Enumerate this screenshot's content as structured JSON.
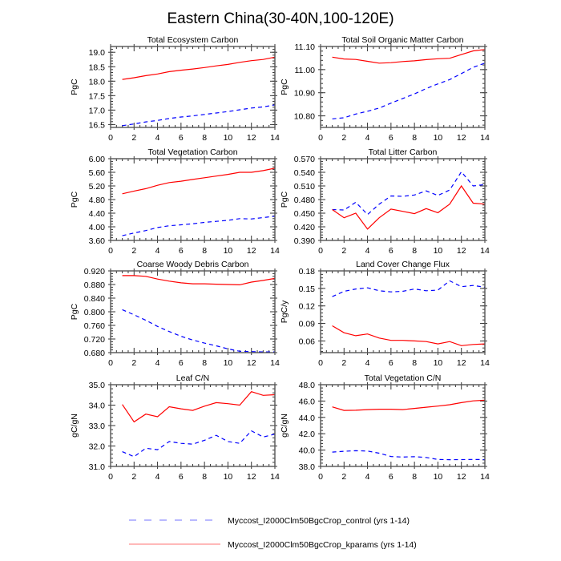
{
  "figure_title": "Eastern China(30-40N,100-120E)",
  "legend": [
    {
      "label": "Myccost_I2000Clm50BgcCrop_control (yrs 1-14)",
      "color": "#0000ff",
      "style": "dashed"
    },
    {
      "label": "Myccost_I2000Clm50BgcCrop_kparams (yrs 1-14)",
      "color": "#ff0000",
      "style": "solid"
    }
  ],
  "chart_data": [
    {
      "type": "line",
      "title": "Total Ecosystem Carbon",
      "xlabel": "",
      "ylabel": "PgC",
      "xlim": [
        0,
        14
      ],
      "ylim": [
        16.4,
        19.2
      ],
      "xticks": [
        0,
        2,
        4,
        6,
        8,
        10,
        12,
        14
      ],
      "yticks": [
        16.5,
        17.0,
        17.5,
        18.0,
        18.5,
        19.0
      ],
      "ytick_labels": [
        "16.5",
        "17.0",
        "17.5",
        "18.0",
        "18.5",
        "19.0"
      ],
      "x": [
        1,
        2,
        3,
        4,
        5,
        6,
        7,
        8,
        9,
        10,
        11,
        12,
        13,
        14
      ],
      "series": [
        {
          "name": "Myccost_I2000Clm50BgcCrop_control (yrs 1-14)",
          "color": "#0000ff",
          "style": "dashed",
          "values": [
            16.46,
            16.52,
            16.59,
            16.64,
            16.71,
            16.76,
            16.8,
            16.85,
            16.9,
            16.95,
            17.01,
            17.07,
            17.11,
            17.18
          ]
        },
        {
          "name": "Myccost_I2000Clm50BgcCrop_kparams (yrs 1-14)",
          "color": "#ff0000",
          "style": "solid",
          "values": [
            18.06,
            18.12,
            18.19,
            18.25,
            18.33,
            18.38,
            18.42,
            18.47,
            18.53,
            18.58,
            18.65,
            18.71,
            18.75,
            18.83
          ]
        }
      ]
    },
    {
      "type": "line",
      "title": "Total Soil Organic Matter Carbon",
      "xlabel": "",
      "ylabel": "PgC",
      "xlim": [
        0,
        14
      ],
      "ylim": [
        10.75,
        11.1
      ],
      "xticks": [
        0,
        2,
        4,
        6,
        8,
        10,
        12,
        14
      ],
      "yticks": [
        10.8,
        10.9,
        11.0,
        11.1
      ],
      "ytick_labels": [
        "10.80",
        "10.90",
        "11.00",
        "11.10"
      ],
      "x": [
        1,
        2,
        3,
        4,
        5,
        6,
        7,
        8,
        9,
        10,
        11,
        12,
        13,
        14
      ],
      "series": [
        {
          "name": "Myccost_I2000Clm50BgcCrop_control (yrs 1-14)",
          "color": "#0000ff",
          "style": "dashed",
          "values": [
            10.787,
            10.792,
            10.808,
            10.82,
            10.834,
            10.855,
            10.875,
            10.895,
            10.918,
            10.938,
            10.957,
            10.983,
            11.01,
            11.028
          ]
        },
        {
          "name": "Myccost_I2000Clm50BgcCrop_kparams (yrs 1-14)",
          "color": "#ff0000",
          "style": "solid",
          "values": [
            11.054,
            11.046,
            11.044,
            11.036,
            11.028,
            11.03,
            11.035,
            11.038,
            11.043,
            11.047,
            11.049,
            11.065,
            11.081,
            11.087
          ]
        }
      ]
    },
    {
      "type": "line",
      "title": "Total Vegetation Carbon",
      "xlabel": "",
      "ylabel": "PgC",
      "xlim": [
        0,
        14
      ],
      "ylim": [
        3.6,
        6.0
      ],
      "xticks": [
        0,
        2,
        4,
        6,
        8,
        10,
        12,
        14
      ],
      "yticks": [
        3.6,
        4.0,
        4.4,
        4.8,
        5.2,
        5.6,
        6.0
      ],
      "ytick_labels": [
        "3.60",
        "4.00",
        "4.40",
        "4.80",
        "5.20",
        "5.60",
        "6.00"
      ],
      "x": [
        1,
        2,
        3,
        4,
        5,
        6,
        7,
        8,
        9,
        10,
        11,
        12,
        13,
        14
      ],
      "series": [
        {
          "name": "Myccost_I2000Clm50BgcCrop_control (yrs 1-14)",
          "color": "#0000ff",
          "style": "dashed",
          "values": [
            3.74,
            3.82,
            3.89,
            3.98,
            4.03,
            4.06,
            4.09,
            4.13,
            4.16,
            4.19,
            4.24,
            4.23,
            4.27,
            4.31
          ]
        },
        {
          "name": "Myccost_I2000Clm50BgcCrop_kparams (yrs 1-14)",
          "color": "#ff0000",
          "style": "solid",
          "values": [
            4.97,
            5.05,
            5.12,
            5.22,
            5.3,
            5.34,
            5.39,
            5.44,
            5.49,
            5.54,
            5.6,
            5.6,
            5.65,
            5.72
          ]
        }
      ]
    },
    {
      "type": "line",
      "title": "Total Litter Carbon",
      "xlabel": "",
      "ylabel": "PgC",
      "xlim": [
        0,
        14
      ],
      "ylim": [
        0.39,
        0.57
      ],
      "xticks": [
        0,
        2,
        4,
        6,
        8,
        10,
        12,
        14
      ],
      "yticks": [
        0.39,
        0.42,
        0.45,
        0.48,
        0.51,
        0.54,
        0.57
      ],
      "ytick_labels": [
        "0.390",
        "0.420",
        "0.450",
        "0.480",
        "0.510",
        "0.540",
        "0.570"
      ],
      "x": [
        1,
        2,
        3,
        4,
        5,
        6,
        7,
        8,
        9,
        10,
        11,
        12,
        13,
        14
      ],
      "series": [
        {
          "name": "Myccost_I2000Clm50BgcCrop_control (yrs 1-14)",
          "color": "#0000ff",
          "style": "dashed",
          "values": [
            0.458,
            0.457,
            0.474,
            0.447,
            0.47,
            0.488,
            0.487,
            0.49,
            0.499,
            0.489,
            0.501,
            0.541,
            0.51,
            0.513
          ]
        },
        {
          "name": "Myccost_I2000Clm50BgcCrop_kparams (yrs 1-14)",
          "color": "#ff0000",
          "style": "solid",
          "values": [
            0.458,
            0.44,
            0.45,
            0.415,
            0.44,
            0.459,
            0.454,
            0.449,
            0.46,
            0.451,
            0.47,
            0.51,
            0.472,
            0.47
          ]
        }
      ]
    },
    {
      "type": "line",
      "title": "Coarse Woody Debris Carbon",
      "xlabel": "",
      "ylabel": "PgC",
      "xlim": [
        0,
        14
      ],
      "ylim": [
        0.68,
        0.92
      ],
      "xticks": [
        0,
        2,
        4,
        6,
        8,
        10,
        12,
        14
      ],
      "yticks": [
        0.68,
        0.72,
        0.76,
        0.8,
        0.84,
        0.88,
        0.92
      ],
      "ytick_labels": [
        "0.680",
        "0.720",
        "0.760",
        "0.800",
        "0.840",
        "0.880",
        "0.920"
      ],
      "x": [
        1,
        2,
        3,
        4,
        5,
        6,
        7,
        8,
        9,
        10,
        11,
        12,
        13,
        14
      ],
      "series": [
        {
          "name": "Myccost_I2000Clm50BgcCrop_control (yrs 1-14)",
          "color": "#0000ff",
          "style": "dashed",
          "values": [
            0.806,
            0.791,
            0.775,
            0.757,
            0.742,
            0.728,
            0.717,
            0.708,
            0.7,
            0.691,
            0.684,
            0.683,
            0.682,
            0.682
          ]
        },
        {
          "name": "Myccost_I2000Clm50BgcCrop_kparams (yrs 1-14)",
          "color": "#ff0000",
          "style": "solid",
          "values": [
            0.906,
            0.906,
            0.904,
            0.896,
            0.89,
            0.885,
            0.882,
            0.882,
            0.881,
            0.88,
            0.879,
            0.887,
            0.892,
            0.898
          ]
        }
      ]
    },
    {
      "type": "line",
      "title": "Land Cover Change Flux",
      "xlabel": "",
      "ylabel": "PgC/y",
      "xlim": [
        0,
        14
      ],
      "ylim": [
        0.04,
        0.18
      ],
      "xticks": [
        0,
        2,
        4,
        6,
        8,
        10,
        12,
        14
      ],
      "yticks": [
        0.06,
        0.09,
        0.12,
        0.15,
        0.18
      ],
      "ytick_labels": [
        "0.06",
        "0.09",
        "0.12",
        "0.15",
        "0.18"
      ],
      "x": [
        1,
        2,
        3,
        4,
        5,
        6,
        7,
        8,
        9,
        10,
        11,
        12,
        13,
        14
      ],
      "series": [
        {
          "name": "Myccost_I2000Clm50BgcCrop_control (yrs 1-14)",
          "color": "#0000ff",
          "style": "dashed",
          "values": [
            0.136,
            0.145,
            0.149,
            0.151,
            0.146,
            0.144,
            0.145,
            0.149,
            0.146,
            0.147,
            0.163,
            0.153,
            0.155,
            0.152
          ]
        },
        {
          "name": "Myccost_I2000Clm50BgcCrop_kparams (yrs 1-14)",
          "color": "#ff0000",
          "style": "solid",
          "values": [
            0.086,
            0.074,
            0.069,
            0.072,
            0.065,
            0.061,
            0.061,
            0.06,
            0.059,
            0.055,
            0.059,
            0.052,
            0.054,
            0.055
          ]
        }
      ]
    },
    {
      "type": "line",
      "title": "Leaf C/N",
      "xlabel": "",
      "ylabel": "gC/gN",
      "xlim": [
        0,
        14
      ],
      "ylim": [
        31.0,
        35.0
      ],
      "xticks": [
        0,
        2,
        4,
        6,
        8,
        10,
        12,
        14
      ],
      "yticks": [
        31.0,
        32.0,
        33.0,
        34.0,
        35.0
      ],
      "ytick_labels": [
        "31.0",
        "32.0",
        "33.0",
        "34.0",
        "35.0"
      ],
      "x": [
        1,
        2,
        3,
        4,
        5,
        6,
        7,
        8,
        9,
        10,
        11,
        12,
        13,
        14
      ],
      "series": [
        {
          "name": "Myccost_I2000Clm50BgcCrop_control (yrs 1-14)",
          "color": "#0000ff",
          "style": "dashed",
          "values": [
            31.72,
            31.48,
            31.89,
            31.82,
            32.22,
            32.13,
            32.09,
            32.28,
            32.52,
            32.22,
            32.13,
            32.74,
            32.44,
            32.58
          ]
        },
        {
          "name": "Myccost_I2000Clm50BgcCrop_kparams (yrs 1-14)",
          "color": "#ff0000",
          "style": "solid",
          "values": [
            34.03,
            33.18,
            33.56,
            33.43,
            33.92,
            33.82,
            33.74,
            33.95,
            34.12,
            34.07,
            34.0,
            34.66,
            34.48,
            34.51
          ]
        }
      ]
    },
    {
      "type": "line",
      "title": "Total Vegetation C/N",
      "xlabel": "",
      "ylabel": "gC/gN",
      "xlim": [
        0,
        14
      ],
      "ylim": [
        38.0,
        48.0
      ],
      "xticks": [
        0,
        2,
        4,
        6,
        8,
        10,
        12,
        14
      ],
      "yticks": [
        38.0,
        40.0,
        42.0,
        44.0,
        46.0,
        48.0
      ],
      "ytick_labels": [
        "38.0",
        "40.0",
        "42.0",
        "44.0",
        "46.0",
        "48.0"
      ],
      "x": [
        1,
        2,
        3,
        4,
        5,
        6,
        7,
        8,
        9,
        10,
        11,
        12,
        13,
        14
      ],
      "series": [
        {
          "name": "Myccost_I2000Clm50BgcCrop_control (yrs 1-14)",
          "color": "#0000ff",
          "style": "dashed",
          "values": [
            39.75,
            39.85,
            39.92,
            39.88,
            39.62,
            39.22,
            39.15,
            39.2,
            39.1,
            38.85,
            38.82,
            38.83,
            38.85,
            38.83
          ]
        },
        {
          "name": "Myccost_I2000Clm50BgcCrop_kparams (yrs 1-14)",
          "color": "#ff0000",
          "style": "solid",
          "values": [
            45.28,
            44.85,
            44.87,
            44.95,
            45.0,
            45.0,
            44.95,
            45.1,
            45.25,
            45.38,
            45.55,
            45.8,
            46.02,
            46.1
          ]
        }
      ]
    }
  ]
}
